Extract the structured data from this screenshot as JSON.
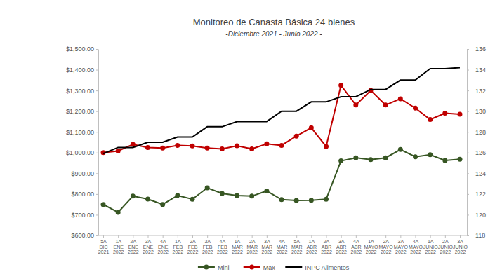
{
  "chart_data": {
    "type": "line",
    "title": "Monitoreo de Canasta Básica 24 bienes",
    "subtitle": "-Diciembre 2021 - Junio 2022 -",
    "categories": [
      "5A DIC 2021",
      "1A ENE 2022",
      "2A ENE 2022",
      "3A ENE 2022",
      "4A ENE 2022",
      "1A FEB 2022",
      "2A FEB 2022",
      "3A FEB 2022",
      "4A FEB 2022",
      "1A MAR 2022",
      "2A MAR 2022",
      "3A MAR 2022",
      "4A MAR 2022",
      "5A MAR 2022",
      "1A ABR 2022",
      "2A ABR 2022",
      "3A ABR 2022",
      "4A ABR 2022",
      "1A MAYO 2022",
      "2A MAYO 2022",
      "3A MAYO 2022",
      "4A MAYO 2022",
      "1A JUNIO 2022",
      "2A JUNIO 2022",
      "3A JUNIO 2022"
    ],
    "series": [
      {
        "name": "Mini",
        "color": "#375623",
        "marker": "circle",
        "line_style": "solid",
        "values": [
          750,
          712,
          790,
          776,
          750,
          793,
          775,
          830,
          803,
          793,
          790,
          815,
          773,
          769,
          770,
          775,
          960,
          975,
          966,
          975,
          1015,
          980,
          990,
          962,
          968
        ]
      },
      {
        "name": "Max",
        "color": "#c00000",
        "marker": "circle",
        "line_style": "solid",
        "values": [
          1000,
          1008,
          1040,
          1025,
          1022,
          1035,
          1032,
          1022,
          1018,
          1033,
          1018,
          1042,
          1035,
          1080,
          1120,
          1030,
          1325,
          1230,
          1300,
          1230,
          1260,
          1215,
          1160,
          1190,
          1185
        ]
      },
      {
        "name": "INPC Alimentos",
        "color": "#000000",
        "marker": "none",
        "line_style": "solid",
        "axis": "y2",
        "values": [
          125.9,
          126.5,
          126.5,
          127,
          127,
          127.5,
          127.5,
          128.5,
          128.5,
          129,
          129,
          129,
          130,
          130,
          130.9,
          130.9,
          131.4,
          131.4,
          132.1,
          132.1,
          133,
          133,
          134.1,
          134.1,
          134.2
        ]
      }
    ],
    "ylim": [
      600,
      1500
    ],
    "yticks": [
      {
        "value": 600,
        "label": "$600.00"
      },
      {
        "value": 700,
        "label": "$700.00"
      },
      {
        "value": 800,
        "label": "$800.00"
      },
      {
        "value": 900,
        "label": "$900.00"
      },
      {
        "value": 1000,
        "label": "$1,000.00"
      },
      {
        "value": 1100,
        "label": "$1,100.00"
      },
      {
        "value": 1200,
        "label": "$1,200.00"
      },
      {
        "value": 1300,
        "label": "$1,300.00"
      },
      {
        "value": 1400,
        "label": "$1,400.00"
      },
      {
        "value": 1500,
        "label": "$1,500.00"
      }
    ],
    "y2lim": [
      118,
      136
    ],
    "y2ticks": [
      118,
      120,
      122,
      124,
      126,
      128,
      130,
      132,
      134,
      136
    ],
    "grid": false,
    "legend": "bottom"
  }
}
